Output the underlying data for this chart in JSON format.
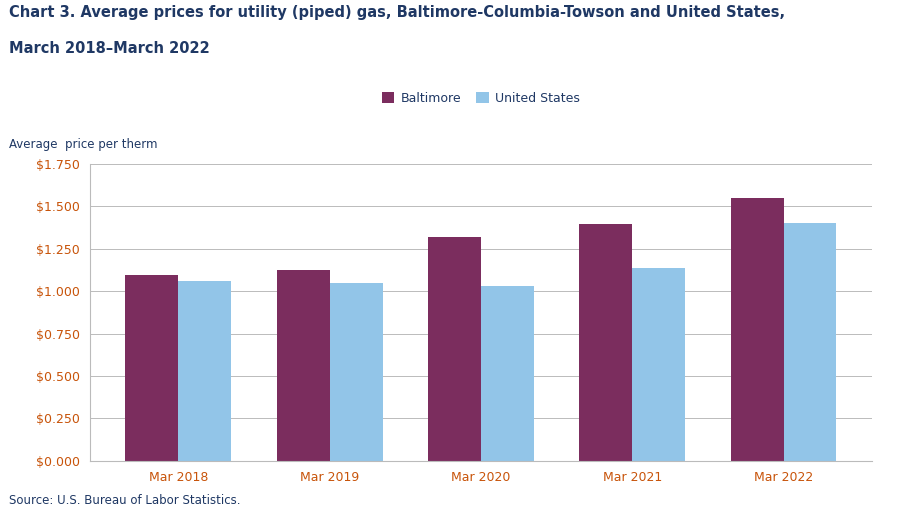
{
  "title_line1": "Chart 3. Average prices for utility (piped) gas, Baltimore-Columbia-Towson and United States,",
  "title_line2": "March 2018–March 2022",
  "ylabel": "Average  price per therm",
  "source": "Source: U.S. Bureau of Labor Statistics.",
  "categories": [
    "Mar 2018",
    "Mar 2019",
    "Mar 2020",
    "Mar 2021",
    "Mar 2022"
  ],
  "baltimore": [
    1.097,
    1.125,
    1.321,
    1.398,
    1.549
  ],
  "us": [
    1.058,
    1.048,
    1.032,
    1.138,
    1.4
  ],
  "baltimore_color": "#7B2D5E",
  "us_color": "#92C5E8",
  "bar_width": 0.35,
  "ylim": [
    0,
    1.75
  ],
  "yticks": [
    0.0,
    0.25,
    0.5,
    0.75,
    1.0,
    1.25,
    1.5,
    1.75
  ],
  "legend_labels": [
    "Baltimore",
    "United States"
  ],
  "title_fontsize": 10.5,
  "axis_label_fontsize": 8.5,
  "tick_fontsize": 9,
  "legend_fontsize": 9,
  "source_fontsize": 8.5,
  "background_color": "#ffffff",
  "grid_color": "#BBBBBB",
  "text_color": "#1F3864",
  "tick_label_color": "#C8540A"
}
